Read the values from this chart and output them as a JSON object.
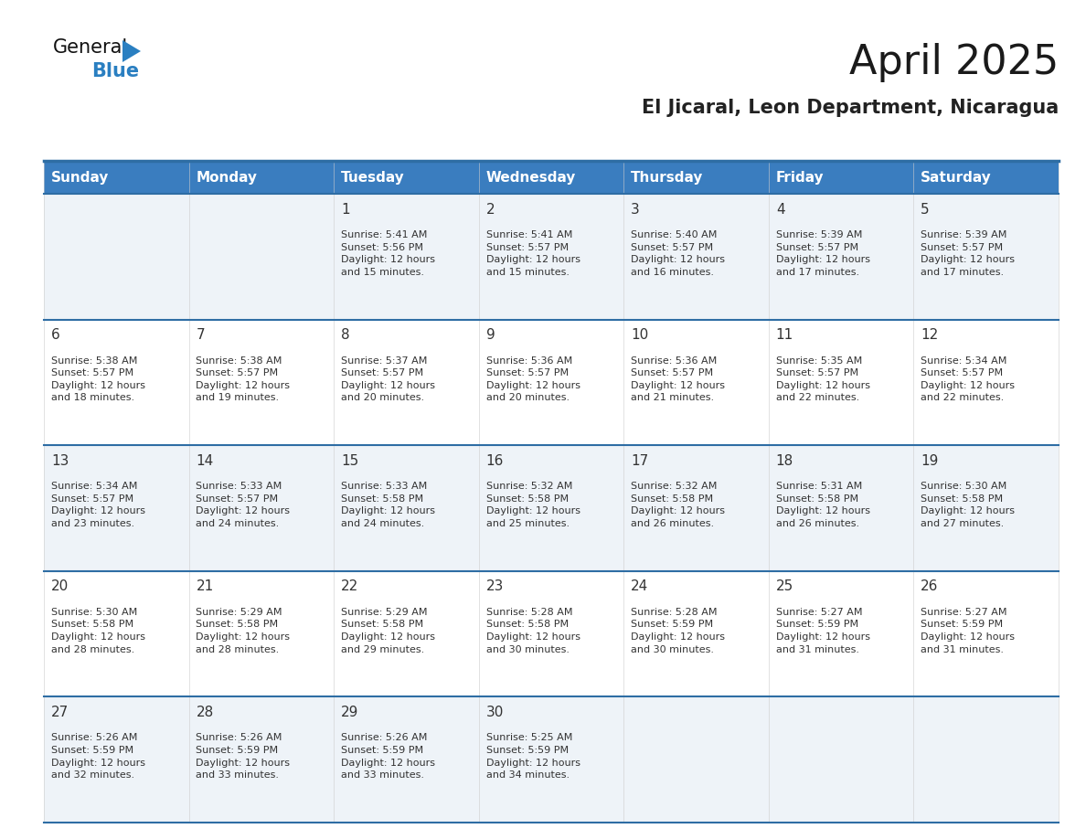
{
  "title": "April 2025",
  "subtitle": "El Jicaral, Leon Department, Nicaragua",
  "header_bg_color": "#3a7dbf",
  "header_text_color": "#ffffff",
  "row_bg_colors": [
    "#eef3f8",
    "#ffffff",
    "#eef3f8",
    "#ffffff",
    "#eef3f8"
  ],
  "grid_line_color": "#2e6da4",
  "text_color": "#333333",
  "days_of_week": [
    "Sunday",
    "Monday",
    "Tuesday",
    "Wednesday",
    "Thursday",
    "Friday",
    "Saturday"
  ],
  "calendar_data": [
    [
      {
        "day": "",
        "info": ""
      },
      {
        "day": "",
        "info": ""
      },
      {
        "day": "1",
        "info": "Sunrise: 5:41 AM\nSunset: 5:56 PM\nDaylight: 12 hours\nand 15 minutes."
      },
      {
        "day": "2",
        "info": "Sunrise: 5:41 AM\nSunset: 5:57 PM\nDaylight: 12 hours\nand 15 minutes."
      },
      {
        "day": "3",
        "info": "Sunrise: 5:40 AM\nSunset: 5:57 PM\nDaylight: 12 hours\nand 16 minutes."
      },
      {
        "day": "4",
        "info": "Sunrise: 5:39 AM\nSunset: 5:57 PM\nDaylight: 12 hours\nand 17 minutes."
      },
      {
        "day": "5",
        "info": "Sunrise: 5:39 AM\nSunset: 5:57 PM\nDaylight: 12 hours\nand 17 minutes."
      }
    ],
    [
      {
        "day": "6",
        "info": "Sunrise: 5:38 AM\nSunset: 5:57 PM\nDaylight: 12 hours\nand 18 minutes."
      },
      {
        "day": "7",
        "info": "Sunrise: 5:38 AM\nSunset: 5:57 PM\nDaylight: 12 hours\nand 19 minutes."
      },
      {
        "day": "8",
        "info": "Sunrise: 5:37 AM\nSunset: 5:57 PM\nDaylight: 12 hours\nand 20 minutes."
      },
      {
        "day": "9",
        "info": "Sunrise: 5:36 AM\nSunset: 5:57 PM\nDaylight: 12 hours\nand 20 minutes."
      },
      {
        "day": "10",
        "info": "Sunrise: 5:36 AM\nSunset: 5:57 PM\nDaylight: 12 hours\nand 21 minutes."
      },
      {
        "day": "11",
        "info": "Sunrise: 5:35 AM\nSunset: 5:57 PM\nDaylight: 12 hours\nand 22 minutes."
      },
      {
        "day": "12",
        "info": "Sunrise: 5:34 AM\nSunset: 5:57 PM\nDaylight: 12 hours\nand 22 minutes."
      }
    ],
    [
      {
        "day": "13",
        "info": "Sunrise: 5:34 AM\nSunset: 5:57 PM\nDaylight: 12 hours\nand 23 minutes."
      },
      {
        "day": "14",
        "info": "Sunrise: 5:33 AM\nSunset: 5:57 PM\nDaylight: 12 hours\nand 24 minutes."
      },
      {
        "day": "15",
        "info": "Sunrise: 5:33 AM\nSunset: 5:58 PM\nDaylight: 12 hours\nand 24 minutes."
      },
      {
        "day": "16",
        "info": "Sunrise: 5:32 AM\nSunset: 5:58 PM\nDaylight: 12 hours\nand 25 minutes."
      },
      {
        "day": "17",
        "info": "Sunrise: 5:32 AM\nSunset: 5:58 PM\nDaylight: 12 hours\nand 26 minutes."
      },
      {
        "day": "18",
        "info": "Sunrise: 5:31 AM\nSunset: 5:58 PM\nDaylight: 12 hours\nand 26 minutes."
      },
      {
        "day": "19",
        "info": "Sunrise: 5:30 AM\nSunset: 5:58 PM\nDaylight: 12 hours\nand 27 minutes."
      }
    ],
    [
      {
        "day": "20",
        "info": "Sunrise: 5:30 AM\nSunset: 5:58 PM\nDaylight: 12 hours\nand 28 minutes."
      },
      {
        "day": "21",
        "info": "Sunrise: 5:29 AM\nSunset: 5:58 PM\nDaylight: 12 hours\nand 28 minutes."
      },
      {
        "day": "22",
        "info": "Sunrise: 5:29 AM\nSunset: 5:58 PM\nDaylight: 12 hours\nand 29 minutes."
      },
      {
        "day": "23",
        "info": "Sunrise: 5:28 AM\nSunset: 5:58 PM\nDaylight: 12 hours\nand 30 minutes."
      },
      {
        "day": "24",
        "info": "Sunrise: 5:28 AM\nSunset: 5:59 PM\nDaylight: 12 hours\nand 30 minutes."
      },
      {
        "day": "25",
        "info": "Sunrise: 5:27 AM\nSunset: 5:59 PM\nDaylight: 12 hours\nand 31 minutes."
      },
      {
        "day": "26",
        "info": "Sunrise: 5:27 AM\nSunset: 5:59 PM\nDaylight: 12 hours\nand 31 minutes."
      }
    ],
    [
      {
        "day": "27",
        "info": "Sunrise: 5:26 AM\nSunset: 5:59 PM\nDaylight: 12 hours\nand 32 minutes."
      },
      {
        "day": "28",
        "info": "Sunrise: 5:26 AM\nSunset: 5:59 PM\nDaylight: 12 hours\nand 33 minutes."
      },
      {
        "day": "29",
        "info": "Sunrise: 5:26 AM\nSunset: 5:59 PM\nDaylight: 12 hours\nand 33 minutes."
      },
      {
        "day": "30",
        "info": "Sunrise: 5:25 AM\nSunset: 5:59 PM\nDaylight: 12 hours\nand 34 minutes."
      },
      {
        "day": "",
        "info": ""
      },
      {
        "day": "",
        "info": ""
      },
      {
        "day": "",
        "info": ""
      }
    ]
  ],
  "title_fontsize": 32,
  "subtitle_fontsize": 15,
  "header_fontsize": 11,
  "day_number_fontsize": 11,
  "info_fontsize": 8,
  "logo_general_color": "#111111",
  "logo_blue_color": "#2a7fc1",
  "logo_triangle_color": "#2a7fc1"
}
